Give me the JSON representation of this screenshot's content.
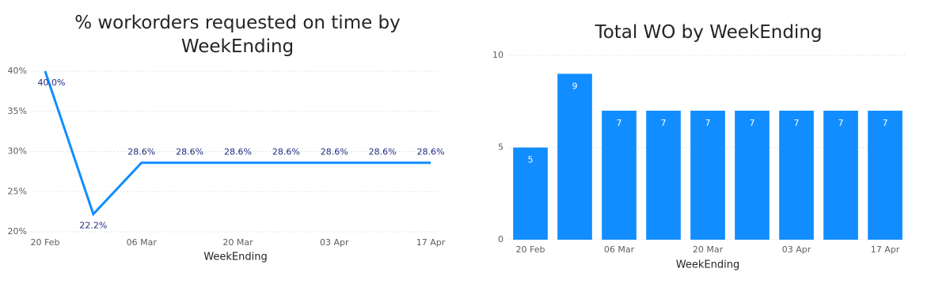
{
  "chart_data": [
    {
      "type": "line",
      "title": "% workorders requested on time by WeekEnding",
      "x_label": "WeekEnding",
      "categories": [
        "20 Feb",
        null,
        "06 Mar",
        null,
        "20 Mar",
        null,
        "03 Apr",
        null,
        "17 Apr"
      ],
      "values": [
        40.0,
        22.2,
        28.6,
        28.6,
        28.6,
        28.6,
        28.6,
        28.6,
        28.6
      ],
      "value_labels": [
        "40.0%",
        "22.2%",
        "28.6%",
        "28.6%",
        "28.6%",
        "28.6%",
        "28.6%",
        "28.6%",
        "28.6%"
      ],
      "color": "#118dff",
      "ylim": [
        20,
        40
      ],
      "yticks": [
        {
          "value": 20,
          "label": "20%"
        },
        {
          "value": 25,
          "label": "25%"
        },
        {
          "value": 30,
          "label": "30%"
        },
        {
          "value": 35,
          "label": "35%"
        },
        {
          "value": 40,
          "label": "40%"
        }
      ],
      "grid": true
    },
    {
      "type": "bar",
      "title": "Total WO by WeekEnding",
      "x_label": "WeekEnding",
      "categories": [
        "20 Feb",
        null,
        "06 Mar",
        null,
        "20 Mar",
        null,
        "03 Apr",
        null,
        "17 Apr"
      ],
      "values": [
        5,
        9,
        7,
        7,
        7,
        7,
        7,
        7,
        7
      ],
      "color": "#118dff",
      "ylim": [
        0,
        10
      ],
      "yticks": [
        0,
        5,
        10
      ],
      "grid": true
    }
  ]
}
